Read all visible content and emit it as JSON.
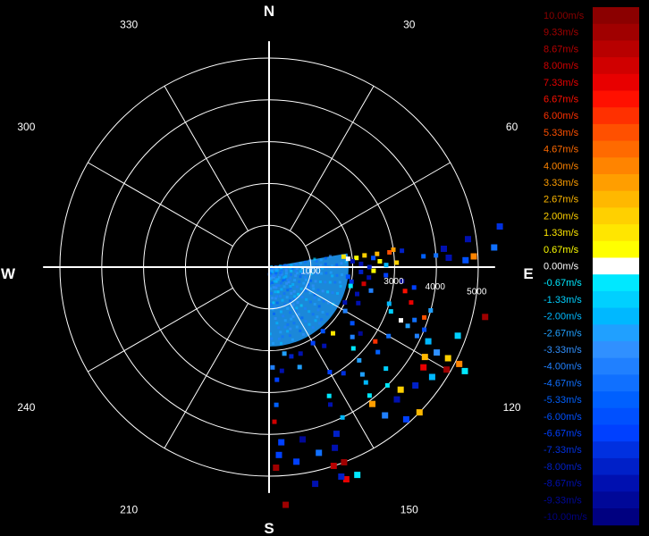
{
  "chart_data": {
    "type": "scatter",
    "title": "",
    "projection": "polar",
    "cardinal_labels": {
      "north": "N",
      "east": "E",
      "south": "S",
      "west": "W"
    },
    "azimuth_labels": [
      "30",
      "60",
      "120",
      "150",
      "210",
      "240",
      "300",
      "330"
    ],
    "azimuth_angles": [
      30,
      60,
      120,
      150,
      210,
      240,
      300,
      330
    ],
    "range_labels": [
      "1000",
      "3000",
      "4000",
      "5000"
    ],
    "range_values": [
      1000,
      3000,
      4000,
      5000
    ],
    "range_max": 5000,
    "range_rings": [
      1000,
      2000,
      3000,
      4000,
      5000
    ],
    "spokes_deg": [
      0,
      30,
      60,
      90,
      120,
      150,
      180,
      210,
      240,
      270,
      300,
      330
    ],
    "colorbar": {
      "labels": [
        "10.00m/s",
        "9.33m/s",
        "8.67m/s",
        "8.00m/s",
        "7.33m/s",
        "6.67m/s",
        "6.00m/s",
        "5.33m/s",
        "4.67m/s",
        "4.00m/s",
        "3.33m/s",
        "2.67m/s",
        "2.00m/s",
        "1.33m/s",
        "0.67m/s",
        "0.00m/s",
        "-0.67m/s",
        "-1.33m/s",
        "-2.00m/s",
        "-2.67m/s",
        "-3.33m/s",
        "-4.00m/s",
        "-4.67m/s",
        "-5.33m/s",
        "-6.00m/s",
        "-6.67m/s",
        "-7.33m/s",
        "-8.00m/s",
        "-8.67m/s",
        "-9.33m/s",
        "-10.00m/s"
      ],
      "values": [
        10.0,
        9.33,
        8.67,
        8.0,
        7.33,
        6.67,
        6.0,
        5.33,
        4.67,
        4.0,
        3.33,
        2.67,
        2.0,
        1.33,
        0.67,
        0.0,
        -0.67,
        -1.33,
        -2.0,
        -2.67,
        -3.33,
        -4.0,
        -4.67,
        -5.33,
        -6.0,
        -6.67,
        -7.33,
        -8.0,
        -8.67,
        -9.33,
        -10.0
      ],
      "colors": [
        "#8b0000",
        "#a00000",
        "#b80000",
        "#d00000",
        "#e80000",
        "#ff1000",
        "#ff3000",
        "#ff5000",
        "#ff6a00",
        "#ff8400",
        "#ff9e00",
        "#ffb800",
        "#ffd000",
        "#ffe600",
        "#ffff00",
        "#ffffff",
        "#00e8ff",
        "#00d0ff",
        "#00b8ff",
        "#20a0ff",
        "#3090ff",
        "#2080ff",
        "#1070ff",
        "#0060ff",
        "#0050ff",
        "#0040ff",
        "#0030e0",
        "#0020c8",
        "#0010b0",
        "#000898",
        "#000080"
      ],
      "label_colors": [
        "#8b0000",
        "#a00000",
        "#b80000",
        "#d00000",
        "#e80000",
        "#ff1000",
        "#ff3000",
        "#ff5000",
        "#ff6a00",
        "#ff8400",
        "#ff9e00",
        "#ffb800",
        "#ffd000",
        "#ffe600",
        "#ffff00",
        "#ffffff",
        "#00e8ff",
        "#00d0ff",
        "#00b8ff",
        "#20a0ff",
        "#3090ff",
        "#2080ff",
        "#1070ff",
        "#0060ff",
        "#0050ff",
        "#0040ff",
        "#0030e0",
        "#0020c8",
        "#0010b0",
        "#000898",
        "#000080"
      ]
    },
    "fan_sector": {
      "az_start": 80,
      "az_end": 180,
      "range_max": 1900,
      "velocity": -3.0
    },
    "points": [
      {
        "az": 82,
        "r": 1800,
        "v": 1.5
      },
      {
        "az": 84,
        "r": 2100,
        "v": 0.7
      },
      {
        "az": 83,
        "r": 2600,
        "v": 2.5
      },
      {
        "az": 82,
        "r": 3000,
        "v": 3.5
      },
      {
        "az": 83,
        "r": 2900,
        "v": 5.0
      },
      {
        "az": 87,
        "r": 2650,
        "v": 1.0
      },
      {
        "az": 88,
        "r": 3050,
        "v": 2.0
      },
      {
        "az": 85,
        "r": 2500,
        "v": -6.0
      },
      {
        "az": 86,
        "r": 3700,
        "v": -5.5
      },
      {
        "az": 83,
        "r": 3200,
        "v": -8.0
      },
      {
        "az": 86,
        "r": 4000,
        "v": -5.0
      },
      {
        "az": 87,
        "r": 4300,
        "v": -8.5
      },
      {
        "az": 88,
        "r": 4700,
        "v": -6.0
      },
      {
        "az": 84,
        "r": 4200,
        "v": -9.0
      },
      {
        "az": 87,
        "r": 4900,
        "v": 4.0
      },
      {
        "az": 82,
        "r": 4800,
        "v": -9.0
      },
      {
        "az": 85,
        "r": 5400,
        "v": -5.0
      },
      {
        "az": 80,
        "r": 5600,
        "v": -7.5
      },
      {
        "az": 93,
        "r": 2200,
        "v": -8.0
      },
      {
        "az": 96,
        "r": 2400,
        "v": -9.0
      },
      {
        "az": 100,
        "r": 2300,
        "v": 8.0
      },
      {
        "az": 103,
        "r": 2500,
        "v": -4.0
      },
      {
        "az": 107,
        "r": 2200,
        "v": -8.5
      },
      {
        "az": 107,
        "r": 3000,
        "v": -2.0
      },
      {
        "az": 110,
        "r": 3100,
        "v": -1.5
      },
      {
        "az": 112,
        "r": 3400,
        "v": 0.0
      },
      {
        "az": 113,
        "r": 3600,
        "v": -3.0
      },
      {
        "az": 115,
        "r": 3900,
        "v": -4.0
      },
      {
        "az": 115,
        "r": 4200,
        "v": -2.0
      },
      {
        "az": 117,
        "r": 4500,
        "v": -3.5
      },
      {
        "az": 117,
        "r": 4800,
        "v": 2.0
      },
      {
        "az": 117,
        "r": 5100,
        "v": 4.0
      },
      {
        "az": 118,
        "r": 5300,
        "v": -1.0
      },
      {
        "az": 100,
        "r": 3300,
        "v": 6.5
      },
      {
        "az": 104,
        "r": 3500,
        "v": 7.5
      },
      {
        "az": 110,
        "r": 3700,
        "v": -4.5
      },
      {
        "az": 112,
        "r": 4000,
        "v": -6.0
      },
      {
        "az": 105,
        "r": 4000,
        "v": -2.5
      },
      {
        "az": 108,
        "r": 3900,
        "v": 5.0
      },
      {
        "az": 96,
        "r": 3200,
        "v": -9.5
      },
      {
        "az": 98,
        "r": 3500,
        "v": -7.0
      },
      {
        "az": 103,
        "r": 5300,
        "v": 9.0
      },
      {
        "az": 110,
        "r": 4800,
        "v": -1.5
      },
      {
        "az": 120,
        "r": 4300,
        "v": 2.5
      },
      {
        "az": 123,
        "r": 4400,
        "v": 7.0
      },
      {
        "az": 120,
        "r": 4900,
        "v": 9.0
      },
      {
        "az": 124,
        "r": 4700,
        "v": -2.0
      },
      {
        "az": 120,
        "r": 3300,
        "v": -5.0
      },
      {
        "az": 125,
        "r": 3100,
        "v": 6.0
      },
      {
        "az": 130,
        "r": 2600,
        "v": -4.0
      },
      {
        "az": 134,
        "r": 2800,
        "v": -1.0
      },
      {
        "az": 136,
        "r": 3100,
        "v": -2.5
      },
      {
        "az": 139,
        "r": 3400,
        "v": -3.0
      },
      {
        "az": 140,
        "r": 3600,
        "v": -2.0
      },
      {
        "az": 142,
        "r": 3900,
        "v": -1.0
      },
      {
        "az": 143,
        "r": 4100,
        "v": 3.0
      },
      {
        "az": 142,
        "r": 4500,
        "v": -4.0
      },
      {
        "az": 131,
        "r": 3700,
        "v": -1.5
      },
      {
        "az": 135,
        "r": 4000,
        "v": -0.8
      },
      {
        "az": 133,
        "r": 4300,
        "v": 2.0
      },
      {
        "az": 128,
        "r": 3300,
        "v": -5.5
      },
      {
        "az": 136,
        "r": 4400,
        "v": -9.0
      },
      {
        "az": 124,
        "r": 2400,
        "v": -6.0
      },
      {
        "az": 129,
        "r": 4500,
        "v": -8.0
      },
      {
        "az": 134,
        "r": 5000,
        "v": 2.5
      },
      {
        "az": 138,
        "r": 4900,
        "v": -7.0
      },
      {
        "az": 145,
        "r": 3100,
        "v": -7.5
      },
      {
        "az": 150,
        "r": 2900,
        "v": -6.5
      },
      {
        "az": 155,
        "r": 3400,
        "v": -1.0
      },
      {
        "az": 156,
        "r": 3600,
        "v": -9.0
      },
      {
        "az": 154,
        "r": 4000,
        "v": -2.0
      },
      {
        "az": 158,
        "r": 4300,
        "v": -8.0
      },
      {
        "az": 160,
        "r": 4600,
        "v": -9.0
      },
      {
        "az": 159,
        "r": 5000,
        "v": 9.5
      },
      {
        "az": 165,
        "r": 4600,
        "v": -5.0
      },
      {
        "az": 162,
        "r": 5000,
        "v": 8.5
      },
      {
        "az": 160,
        "r": 5400,
        "v": 7.5
      },
      {
        "az": 161,
        "r": 5300,
        "v": -8.0
      },
      {
        "az": 157,
        "r": 5400,
        "v": -1.0
      },
      {
        "az": 169,
        "r": 4200,
        "v": -9.5
      },
      {
        "az": 173,
        "r": 2500,
        "v": -8.5
      },
      {
        "az": 176,
        "r": 2700,
        "v": -7.0
      },
      {
        "az": 177,
        "r": 3300,
        "v": -5.5
      },
      {
        "az": 178,
        "r": 3700,
        "v": 8.0
      },
      {
        "az": 176,
        "r": 4200,
        "v": -7.0
      },
      {
        "az": 177,
        "r": 4500,
        "v": -6.5
      },
      {
        "az": 178,
        "r": 4800,
        "v": 9.0
      },
      {
        "az": 176,
        "r": 5700,
        "v": 9.5
      },
      {
        "az": 172,
        "r": 4700,
        "v": -7.0
      },
      {
        "az": 168,
        "r": 5300,
        "v": -9.0
      },
      {
        "az": 163,
        "r": 2500,
        "v": -3.0
      },
      {
        "az": 166,
        "r": 2200,
        "v": -8.0
      },
      {
        "az": 160,
        "r": 2200,
        "v": -9.0
      },
      {
        "az": 178,
        "r": 2400,
        "v": -4.0
      },
      {
        "az": 170,
        "r": 2100,
        "v": -2.5
      },
      {
        "az": 150,
        "r": 2100,
        "v": -7.0
      },
      {
        "az": 145,
        "r": 2300,
        "v": -8.5
      },
      {
        "az": 140,
        "r": 2000,
        "v": -6.0
      },
      {
        "az": 136,
        "r": 2200,
        "v": 1.5
      },
      {
        "az": 115,
        "r": 2000,
        "v": -9.0
      },
      {
        "az": 120,
        "r": 2100,
        "v": -4.0
      },
      {
        "az": 100,
        "r": 2000,
        "v": -7.5
      },
      {
        "az": 97,
        "r": 1900,
        "v": -6.0
      },
      {
        "az": 103,
        "r": 2000,
        "v": -0.5
      },
      {
        "az": 112,
        "r": 2300,
        "v": -8.5
      },
      {
        "az": 126,
        "r": 2700,
        "v": -9.5
      },
      {
        "az": 88,
        "r": 2200,
        "v": -9.0
      },
      {
        "az": 90,
        "r": 2400,
        "v": -8.0
      },
      {
        "az": 92,
        "r": 2500,
        "v": 1.0
      },
      {
        "az": 89,
        "r": 2800,
        "v": -2.0
      },
      {
        "az": 94,
        "r": 2800,
        "v": -6.5
      },
      {
        "az": 84,
        "r": 1900,
        "v": 0.3
      },
      {
        "az": 86,
        "r": 2000,
        "v": -9.0
      },
      {
        "az": 83,
        "r": 2300,
        "v": 2.0
      }
    ]
  }
}
